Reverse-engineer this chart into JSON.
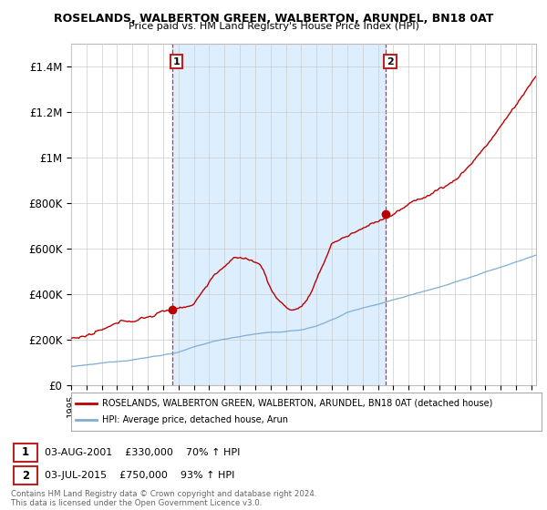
{
  "title1": "ROSELANDS, WALBERTON GREEN, WALBERTON, ARUNDEL, BN18 0AT",
  "title2": "Price paid vs. HM Land Registry's House Price Index (HPI)",
  "ytick_labels": [
    "£0",
    "£200K",
    "£400K",
    "£600K",
    "£800K",
    "£1M",
    "£1.2M",
    "£1.4M"
  ],
  "yticks": [
    0,
    200000,
    400000,
    600000,
    800000,
    1000000,
    1200000,
    1400000
  ],
  "house_color": "#bb0000",
  "hpi_color": "#7fadd4",
  "shade_color": "#ddeeff",
  "marker1_year": 2001.58,
  "marker1_price": 330000,
  "marker2_year": 2015.5,
  "marker2_price": 750000,
  "legend_house": "ROSELANDS, WALBERTON GREEN, WALBERTON, ARUNDEL, BN18 0AT (detached house)",
  "legend_hpi": "HPI: Average price, detached house, Arun",
  "sale1_date": "03-AUG-2001",
  "sale1_price": "£330,000",
  "sale1_hpi": "70% ↑ HPI",
  "sale2_date": "03-JUL-2015",
  "sale2_price": "£750,000",
  "sale2_hpi": "93% ↑ HPI",
  "footer": "Contains HM Land Registry data © Crown copyright and database right 2024.\nThis data is licensed under the Open Government Licence v3.0.",
  "background_color": "#ffffff",
  "grid_color": "#cccccc",
  "ylim": [
    0,
    1500000
  ]
}
